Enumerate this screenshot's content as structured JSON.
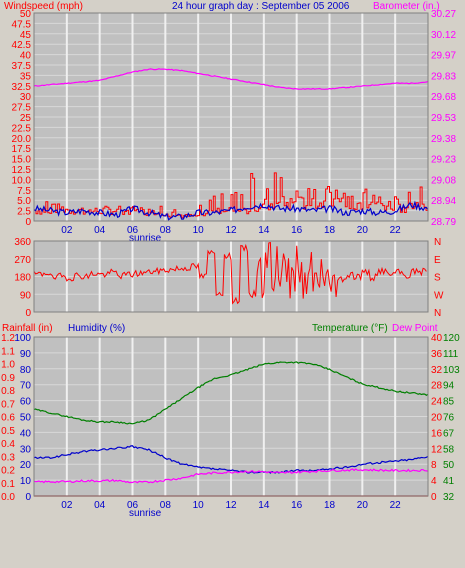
{
  "colors": {
    "background": "#d4d0c8",
    "plot_bg": "#c0c0c0",
    "grid": "#e8e8e8",
    "red": "#ff0000",
    "blue": "#0000cc",
    "magenta": "#ff00ff",
    "green": "#007f00",
    "dark_red": "#cc0000"
  },
  "chart_data": [
    {
      "id": "wind-barometer",
      "type": "line",
      "title": "24 hour graph day : September 05 2006",
      "left_label": "Windspeed (mph)",
      "right_label": "Barometer (in.)",
      "x_ticks": [
        "02",
        "04",
        "06",
        "08",
        "10",
        "12",
        "14",
        "16",
        "18",
        "20",
        "22"
      ],
      "x_note": "sunrise",
      "y_left": {
        "ticks": [
          "0",
          "2.5",
          "5.0",
          "7.5",
          "10.0",
          "12.5",
          "15.0",
          "17.5",
          "20.0",
          "22.5",
          "25",
          "27.5",
          "30",
          "32.5",
          "35",
          "37.5",
          "40",
          "42.5",
          "45",
          "47.5",
          "50"
        ],
        "range": [
          0,
          50
        ]
      },
      "y_right": {
        "ticks": [
          "28.79",
          "28.94",
          "29.08",
          "29.23",
          "29.38",
          "29.53",
          "29.68",
          "29.83",
          "29.97",
          "30.12",
          "30.27"
        ],
        "range": [
          28.79,
          30.27
        ]
      },
      "series": [
        {
          "name": "Windspeed (mph)",
          "color": "#ff0000",
          "style": "spiky",
          "base": [
            3,
            3.5,
            3,
            2.8,
            3,
            2.8,
            2.5,
            3,
            3,
            2.5,
            3,
            3.5,
            3,
            3.5,
            4.5,
            5,
            5,
            5,
            4.5,
            5,
            5.5,
            4.5,
            4,
            4.5,
            5.5,
            5
          ],
          "spike": [
            6,
            7,
            6,
            4,
            6,
            5,
            4,
            4,
            6,
            5,
            7,
            9,
            11,
            13,
            12,
            10,
            11,
            10,
            8,
            9,
            11,
            8,
            7,
            9,
            11,
            9
          ]
        },
        {
          "name": "Wind gust (mph)",
          "color": "#0000cc",
          "style": "smooth",
          "x": [
            0,
            1,
            2,
            3,
            4,
            5,
            6,
            7,
            8,
            9,
            10,
            11,
            12,
            13,
            14,
            15,
            16,
            17,
            18,
            19,
            20,
            21,
            22,
            23,
            24
          ],
          "values": [
            3,
            2.5,
            2,
            2.5,
            2,
            1.5,
            3,
            2,
            1,
            1,
            2,
            2,
            2.5,
            3.5,
            4,
            3,
            3,
            2.5,
            3,
            2,
            2.5,
            2,
            2.5,
            4,
            3
          ]
        },
        {
          "name": "Barometer (in.)",
          "color": "#ff00ff",
          "style": "smooth",
          "x": [
            0,
            1,
            2,
            3,
            4,
            5,
            6,
            7,
            8,
            9,
            10,
            11,
            12,
            13,
            14,
            15,
            16,
            17,
            18,
            19,
            20,
            21,
            22,
            23,
            24
          ],
          "values": [
            29.75,
            29.76,
            29.77,
            29.78,
            29.79,
            29.82,
            29.85,
            29.87,
            29.87,
            29.86,
            29.84,
            29.82,
            29.8,
            29.78,
            29.76,
            29.74,
            29.73,
            29.73,
            29.73,
            29.74,
            29.75,
            29.76,
            29.77,
            29.77,
            29.78
          ]
        }
      ]
    },
    {
      "id": "wind-direction",
      "type": "scatter",
      "y_left": {
        "ticks": [
          "0",
          "90",
          "180",
          "270",
          "360"
        ],
        "range": [
          0,
          360
        ]
      },
      "y_right": {
        "ticks": [
          "N",
          "W",
          "S",
          "E",
          "N"
        ],
        "range": [
          0,
          360
        ]
      },
      "series": [
        {
          "name": "Wind direction",
          "color": "#ff0000",
          "x": [
            0,
            0.5,
            1,
            1.5,
            2,
            2.5,
            3,
            3.5,
            4,
            4.5,
            5,
            5.5,
            6,
            6.5,
            7,
            7.5,
            8,
            8.5,
            9,
            9.5,
            10,
            10.5,
            11,
            11.5,
            12,
            12.5,
            13,
            13.5,
            14,
            14.5,
            15,
            15.5,
            16,
            16.5,
            17,
            17.5,
            18,
            18.5,
            19,
            19.5,
            20,
            20.5,
            21,
            21.5,
            22,
            22.5,
            23,
            23.5
          ],
          "values": [
            190,
            200,
            170,
            180,
            175,
            185,
            180,
            195,
            190,
            200,
            185,
            190,
            195,
            200,
            205,
            210,
            215,
            220,
            225,
            230,
            180,
            300,
            100,
            280,
            60,
            320,
            90,
            250,
            180,
            120,
            160,
            140,
            170,
            180,
            150,
            175,
            160,
            170,
            190,
            180,
            200,
            175,
            210,
            190,
            200,
            185,
            205,
            195
          ],
          "noisy_range": [
            13.5,
            18.5
          ]
        }
      ]
    },
    {
      "id": "rain-humidity-temperature",
      "type": "line",
      "left_labels": [
        "Rainfall (in)",
        "Humidity (%)"
      ],
      "right_labels": [
        "Temperature (°F)",
        "Dew Point"
      ],
      "x_ticks": [
        "02",
        "04",
        "06",
        "08",
        "10",
        "12",
        "14",
        "16",
        "18",
        "20",
        "22"
      ],
      "x_note": "sunrise",
      "y_rain": {
        "ticks": [
          "0.0",
          "0.1",
          "0.2",
          "0.3",
          "0.4",
          "0.5",
          "0.6",
          "0.7",
          "0.8",
          "0.9",
          "1.0",
          "1.1",
          "1.2"
        ],
        "range": [
          0,
          1.2
        ]
      },
      "y_humidity": {
        "ticks": [
          "0",
          "10",
          "20",
          "30",
          "40",
          "50",
          "60",
          "70",
          "80",
          "90",
          "100"
        ],
        "range": [
          0,
          100
        ]
      },
      "y_temp_c": {
        "ticks": [
          "0",
          "4",
          "8",
          "12",
          "16",
          "20",
          "24",
          "28",
          "32",
          "36",
          "40"
        ],
        "range": [
          0,
          40
        ]
      },
      "y_temp_f": {
        "ticks": [
          "32",
          "41",
          "50",
          "58",
          "67",
          "76",
          "85",
          "94",
          "103",
          "111",
          "120"
        ],
        "range": [
          32,
          120
        ]
      },
      "series": [
        {
          "name": "Temperature (°F)",
          "color": "#007f00",
          "axis": "temp_f",
          "x": [
            0,
            1,
            2,
            3,
            4,
            5,
            6,
            7,
            8,
            9,
            10,
            11,
            12,
            13,
            14,
            15,
            16,
            17,
            18,
            19,
            20,
            21,
            22,
            23,
            24
          ],
          "values": [
            80,
            78,
            76,
            74,
            73,
            73,
            72,
            74,
            80,
            86,
            92,
            97,
            99,
            102,
            105,
            106,
            106,
            105,
            102,
            98,
            94,
            92,
            90,
            89,
            88
          ]
        },
        {
          "name": "Humidity (%)",
          "color": "#0000cc",
          "axis": "humidity",
          "x": [
            0,
            1,
            2,
            3,
            4,
            5,
            6,
            7,
            8,
            9,
            10,
            11,
            12,
            13,
            14,
            15,
            16,
            17,
            18,
            19,
            20,
            21,
            22,
            23,
            24
          ],
          "values": [
            24,
            24,
            26,
            28,
            29,
            30,
            31,
            29,
            24,
            20,
            18,
            17,
            16,
            15,
            15,
            15,
            16,
            16,
            17,
            18,
            20,
            21,
            22,
            23,
            25
          ]
        },
        {
          "name": "Dew Point",
          "color": "#ff00ff",
          "axis": "temp_c",
          "x": [
            0,
            1,
            2,
            3,
            4,
            5,
            6,
            7,
            8,
            9,
            10,
            11,
            12,
            13,
            14,
            15,
            16,
            17,
            18,
            19,
            20,
            21,
            22,
            23,
            24
          ],
          "values": [
            3.5,
            3.6,
            3.6,
            3.8,
            3.8,
            3.9,
            3.4,
            3.5,
            4.0,
            4.5,
            5.5,
            5.8,
            6.0,
            6.2,
            6.1,
            5.8,
            6.0,
            6.2,
            6.4,
            6.5,
            6.6,
            6.5,
            6.4,
            6.4,
            6.5
          ]
        },
        {
          "name": "Rainfall (in)",
          "color": "#cc0000",
          "axis": "rain",
          "x": [
            0,
            24
          ],
          "values": [
            0,
            0
          ]
        }
      ]
    }
  ]
}
